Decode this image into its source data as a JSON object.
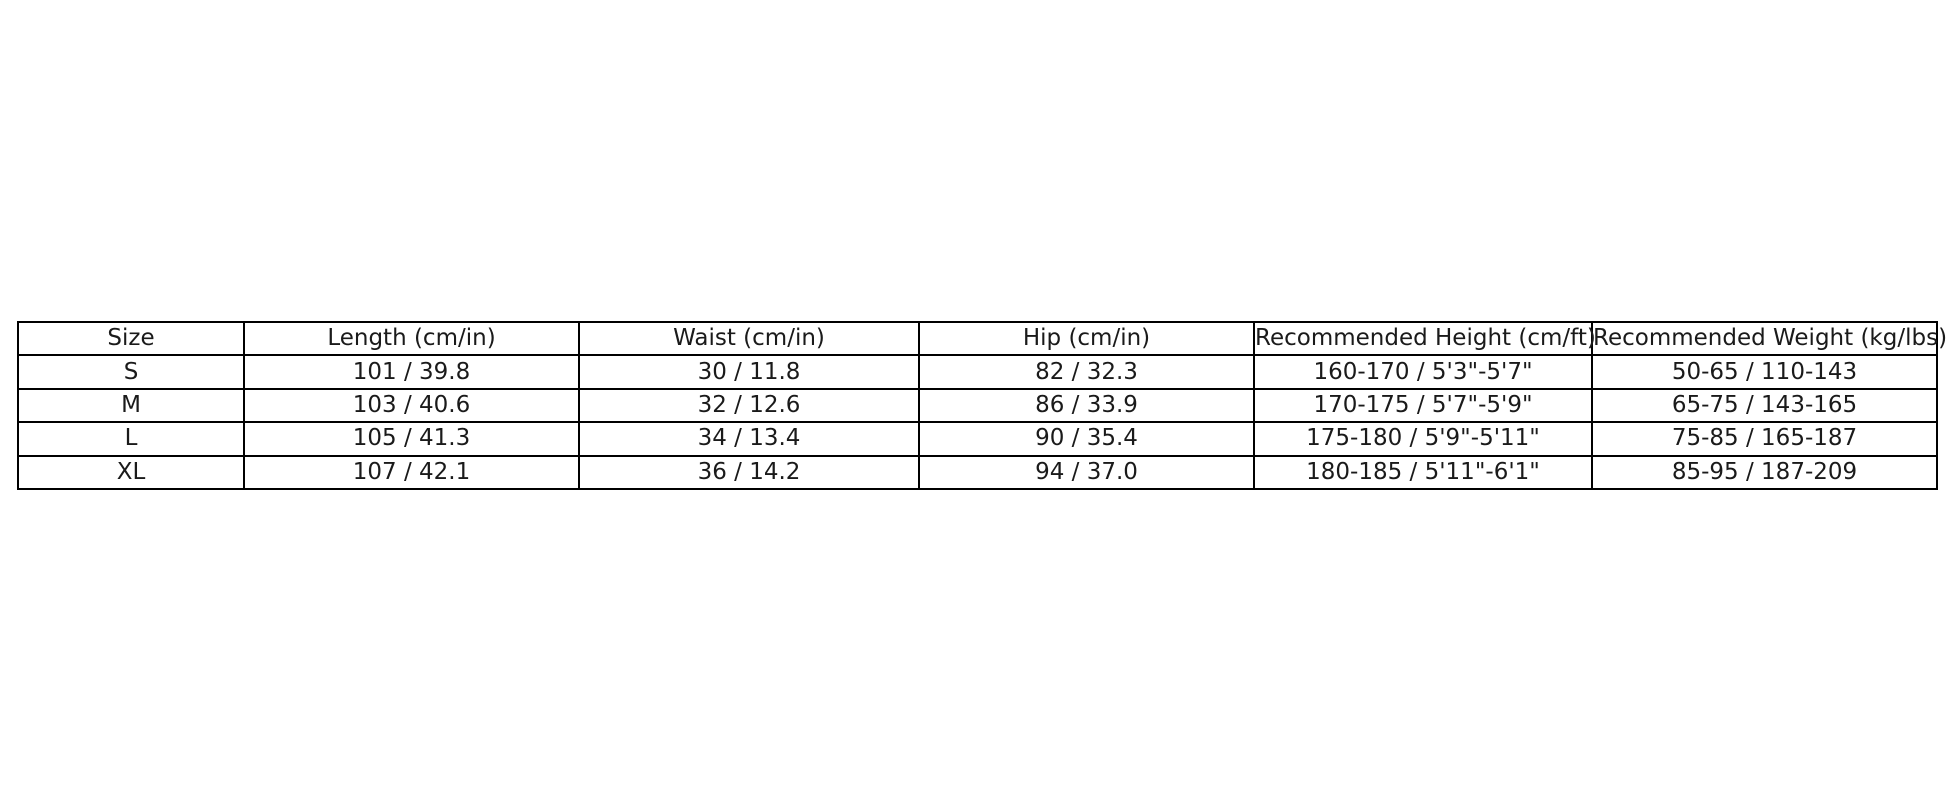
{
  "colors": {
    "background": "#ffffff",
    "border": "#000000",
    "text": "#1a1a1a"
  },
  "size_chart": {
    "columns": [
      "Size",
      "Length (cm/in)",
      "Waist (cm/in)",
      "Hip (cm/in)",
      "Recommended Height (cm/ft)",
      "Recommended Weight (kg/lbs)"
    ],
    "rows": [
      {
        "cells": [
          "S",
          "101 / 39.8",
          "30 / 11.8",
          "82 / 32.3",
          "160-170 / 5'3\"-5'7\"",
          "50-65 / 110-143"
        ]
      },
      {
        "cells": [
          "M",
          "103 / 40.6",
          "32 / 12.6",
          "86 / 33.9",
          "170-175 / 5'7\"-5'9\"",
          "65-75 / 143-165"
        ]
      },
      {
        "cells": [
          "L",
          "105 / 41.3",
          "34 / 13.4",
          "90 / 35.4",
          "175-180 / 5'9\"-5'11\"",
          "75-85 / 165-187"
        ]
      },
      {
        "cells": [
          "XL",
          "107 / 42.1",
          "36 / 14.2",
          "94 / 37.0",
          "180-185 / 5'11\"-6'1\"",
          "85-95 / 187-209"
        ]
      }
    ]
  },
  "chart_data": {
    "type": "table",
    "title": "",
    "columns": [
      "Size",
      "Length (cm/in)",
      "Waist (cm/in)",
      "Hip (cm/in)",
      "Recommended Height (cm/ft)",
      "Recommended Weight (kg/lbs)"
    ],
    "rows": [
      [
        "S",
        "101 / 39.8",
        "30 / 11.8",
        "82 / 32.3",
        "160-170 / 5'3\"-5'7\"",
        "50-65 / 110-143"
      ],
      [
        "M",
        "103 / 40.6",
        "32 / 12.6",
        "86 / 33.9",
        "170-175 / 5'7\"-5'9\"",
        "65-75 / 143-165"
      ],
      [
        "L",
        "105 / 41.3",
        "34 / 13.4",
        "90 / 35.4",
        "175-180 / 5'9\"-5'11\"",
        "75-85 / 165-187"
      ],
      [
        "XL",
        "107 / 42.1",
        "36 / 14.2",
        "94 / 37.0",
        "180-185 / 5'11\"-6'1\"",
        "85-95 / 187-209"
      ]
    ]
  }
}
